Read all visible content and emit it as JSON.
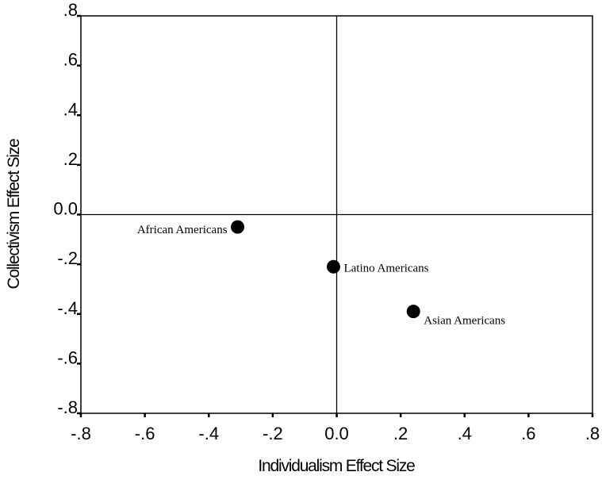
{
  "chart_data": {
    "type": "scatter",
    "xlabel": "Individualism Effect Size",
    "ylabel": "Collectivism Effect Size",
    "xlim": [
      -0.8,
      0.8
    ],
    "ylim": [
      -0.8,
      0.8
    ],
    "x_ticks": [
      -0.8,
      -0.6,
      -0.4,
      -0.2,
      0.0,
      0.2,
      0.4,
      0.6,
      0.8
    ],
    "y_ticks": [
      -0.8,
      -0.6,
      -0.4,
      -0.2,
      0.0,
      0.2,
      0.4,
      0.6,
      0.8
    ],
    "x_tick_labels": [
      "-.8",
      "-.6",
      "-.4",
      "-.2",
      "0.0",
      ".2",
      ".4",
      ".6",
      ".8"
    ],
    "y_tick_labels": [
      "-.8",
      "-.6",
      "-.4",
      "-.2",
      "0.0",
      ".2",
      ".4",
      ".6",
      ".8"
    ],
    "reference_lines": {
      "x": 0.0,
      "y": 0.0
    },
    "grid": false,
    "points": [
      {
        "label": "African Americans",
        "x": -0.31,
        "y": -0.05,
        "label_side": "left"
      },
      {
        "label": "Latino Americans",
        "x": -0.01,
        "y": -0.21,
        "label_side": "right"
      },
      {
        "label": "Asian Americans",
        "x": 0.24,
        "y": -0.39,
        "label_side": "right"
      }
    ]
  }
}
